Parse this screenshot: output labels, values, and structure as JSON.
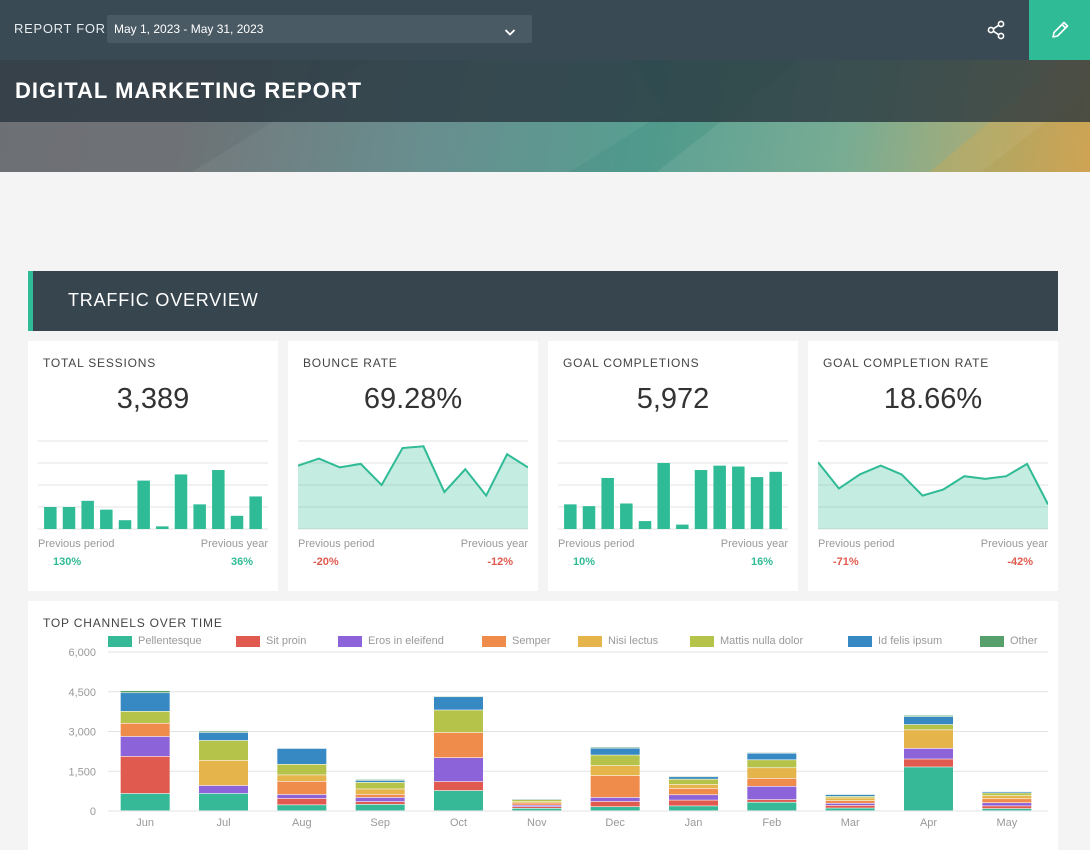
{
  "header": {
    "report_for_label": "REPORT FOR",
    "date_range": "May 1, 2023 - May 31, 2023",
    "title": "DIGITAL MARKETING REPORT",
    "icons": {
      "dropdown": "chevron-down-icon",
      "share": "share-icon",
      "edit": "pencil-icon"
    },
    "accent_color": "#2fbb95"
  },
  "section": {
    "title": "TRAFFIC OVERVIEW"
  },
  "cards": [
    {
      "label": "TOTAL SESSIONS",
      "value": "3,389",
      "chart": "bar",
      "pp_label": "Previous period",
      "py_label": "Previous year",
      "pp_value": "130%",
      "py_value": "36%",
      "pp_trend": "pos",
      "py_trend": "pos",
      "series": [
        25,
        25,
        32,
        22,
        10,
        55,
        3,
        62,
        28,
        67,
        15,
        37
      ]
    },
    {
      "label": "BOUNCE RATE",
      "value": "69.28%",
      "chart": "area",
      "pp_label": "Previous period",
      "py_label": "Previous year",
      "pp_value": "-20%",
      "py_value": "-12%",
      "pp_trend": "neg",
      "py_trend": "neg",
      "series": [
        72,
        80,
        70,
        74,
        50,
        92,
        94,
        42,
        68,
        38,
        85,
        70
      ]
    },
    {
      "label": "GOAL COMPLETIONS",
      "value": "5,972",
      "chart": "bar",
      "pp_label": "Previous period",
      "py_label": "Previous year",
      "pp_value": "10%",
      "py_value": "16%",
      "pp_trend": "pos",
      "py_trend": "pos",
      "series": [
        28,
        26,
        58,
        29,
        9,
        75,
        5,
        67,
        72,
        71,
        59,
        65
      ]
    },
    {
      "label": "GOAL COMPLETION RATE",
      "value": "18.66%",
      "chart": "area",
      "pp_label": "Previous period",
      "py_label": "Previous year",
      "pp_value": "-71%",
      "py_value": "-42%",
      "pp_trend": "neg",
      "py_trend": "neg",
      "series": [
        76,
        46,
        62,
        72,
        62,
        38,
        45,
        60,
        57,
        60,
        74,
        28
      ]
    }
  ],
  "chart_data": {
    "type": "bar",
    "stacked": true,
    "title": "TOP CHANNELS OVER TIME",
    "categories": [
      "Jun",
      "Jul",
      "Aug",
      "Sep",
      "Oct",
      "Nov",
      "Dec",
      "Jan",
      "Feb",
      "Mar",
      "Apr",
      "May"
    ],
    "ylim": [
      0,
      6000
    ],
    "yticks": [
      "0",
      "1,500",
      "3,000",
      "4,500",
      "6,000"
    ],
    "ytick_values": [
      0,
      1500,
      3000,
      4500,
      6000
    ],
    "grid": true,
    "legend_position": "top",
    "series": [
      {
        "name": "Pellentesque",
        "color": "#36b997",
        "values": [
          650,
          650,
          220,
          240,
          760,
          90,
          150,
          180,
          320,
          100,
          1650,
          80
        ]
      },
      {
        "name": "Sit proin",
        "color": "#e05a4f",
        "values": [
          1400,
          0,
          240,
          100,
          340,
          60,
          200,
          220,
          100,
          100,
          300,
          100
        ]
      },
      {
        "name": "Eros in eleifend",
        "color": "#8c63d9",
        "values": [
          750,
          300,
          150,
          160,
          900,
          60,
          150,
          200,
          500,
          80,
          400,
          120
        ]
      },
      {
        "name": "Semper",
        "color": "#ef8c4c",
        "values": [
          500,
          0,
          500,
          120,
          950,
          80,
          820,
          240,
          300,
          100,
          0,
          150
        ]
      },
      {
        "name": "Nisi lectus",
        "color": "#e5b44a",
        "values": [
          0,
          950,
          240,
          200,
          0,
          50,
          380,
          150,
          400,
          100,
          700,
          120
        ]
      },
      {
        "name": "Mattis nulla dolor",
        "color": "#b5c34a",
        "values": [
          450,
          750,
          400,
          250,
          850,
          80,
          400,
          200,
          300,
          60,
          200,
          100
        ]
      },
      {
        "name": "Id felis ipsum",
        "color": "#3789c4",
        "values": [
          700,
          300,
          600,
          70,
          500,
          30,
          260,
          90,
          250,
          70,
          300,
          50
        ]
      },
      {
        "name": "Other",
        "color": "#57a06b",
        "values": [
          80,
          50,
          0,
          40,
          30,
          10,
          40,
          30,
          30,
          20,
          50,
          10
        ]
      }
    ]
  }
}
